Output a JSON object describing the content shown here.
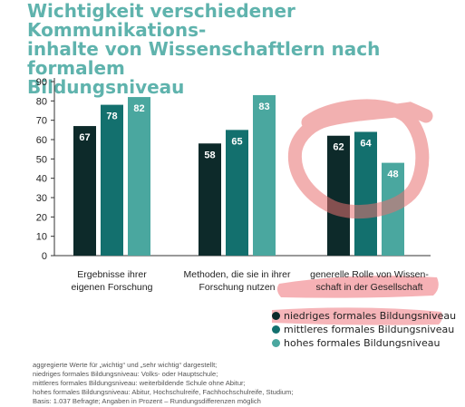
{
  "title_lines": [
    "Wichtigkeit verschiedener Kommunikations-",
    "inhalte von Wissenschaftlern nach formalem",
    "Bildungsniveau"
  ],
  "chart_data": {
    "type": "bar",
    "title": "Wichtigkeit verschiedener Kommunikationsinhalte von Wissenschaftlern nach formalem Bildungsniveau",
    "categories": [
      [
        "Ergebnisse ihrer",
        "eigenen Forschung"
      ],
      [
        "Methoden, die sie in ihrer",
        "Forschung nutzen"
      ],
      [
        "generelle Rolle von Wissen-",
        "schaft in der Gesellschaft"
      ]
    ],
    "series": [
      {
        "name": "niedriges formales Bildungsniveau",
        "color": "#0d2a2a",
        "values": [
          67,
          58,
          62
        ]
      },
      {
        "name": "mittleres formales Bildungsniveau",
        "color": "#13706e",
        "values": [
          78,
          65,
          64
        ]
      },
      {
        "name": "hohes formales Bildungsniveau",
        "color": "#4aa79f",
        "values": [
          82,
          83,
          48
        ]
      }
    ],
    "yticks": [
      0,
      10,
      20,
      30,
      40,
      50,
      60,
      70,
      80,
      90
    ],
    "ylim": [
      0,
      90
    ],
    "grid": false,
    "legend": "bottom-right"
  },
  "notes": [
    "aggregierte Werte für „wichtig“ und „sehr wichtig“ dargestellt;",
    "niedriges formales Bildungsniveau: Volks- oder Hauptschule;",
    "mittleres formales Bildungsniveau: weiterbildende Schule ohne Abitur;",
    "hohes formales Bildungsniveau: Abitur, Hochschulreife, Fachhochschulreife, Studium;",
    "Basis: 1.037 Befragte; Angaben in Prozent – Rundungsdifferenzen möglich"
  ],
  "annotation_colors": {
    "circle": "#e8706f",
    "highlight": "#f4a3a8"
  }
}
